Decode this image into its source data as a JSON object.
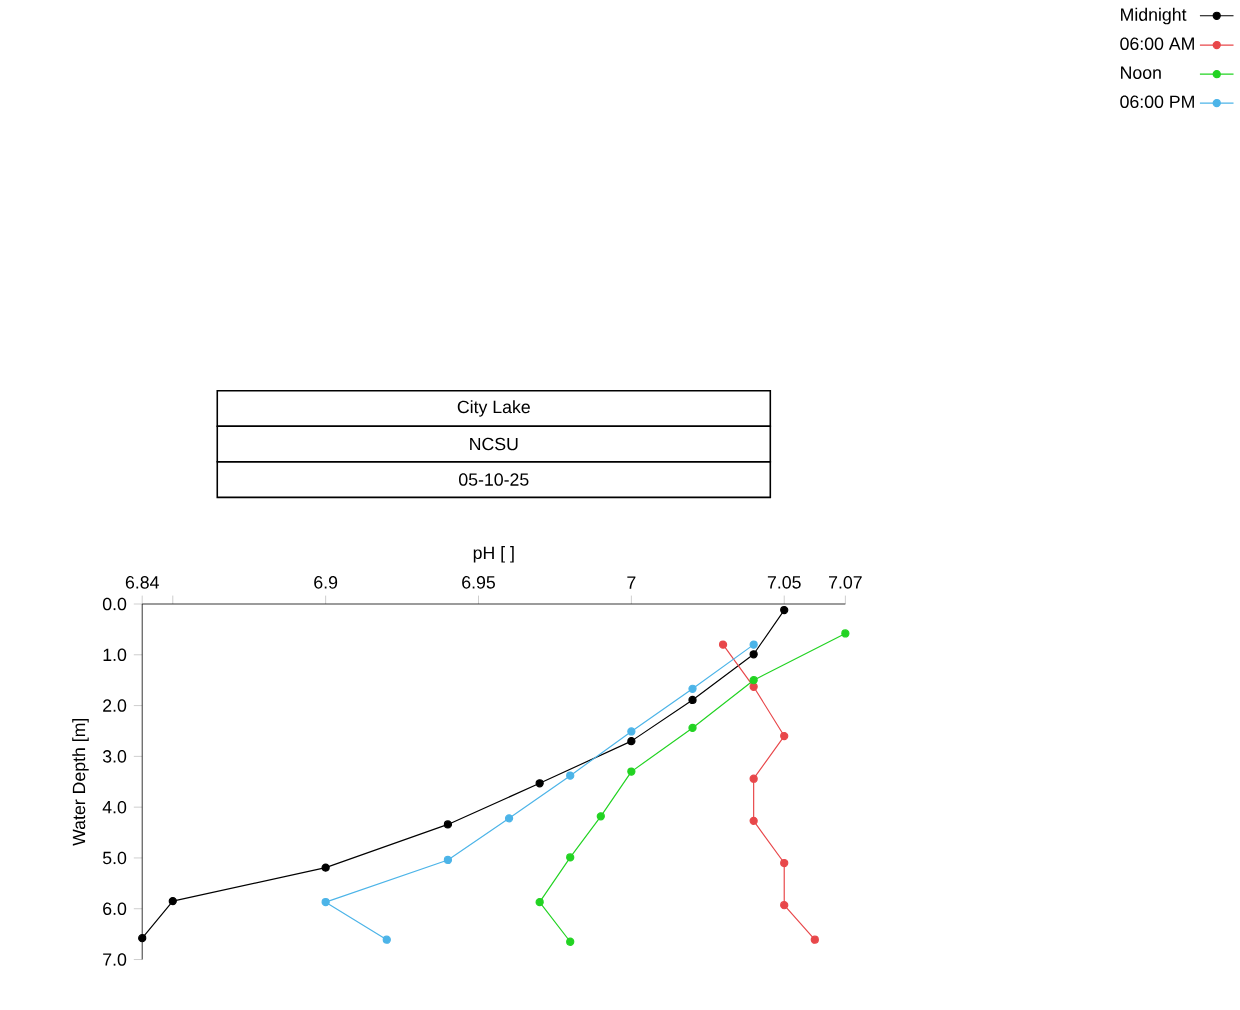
{
  "chart_data": {
    "type": "line",
    "title": "City Lake",
    "subtitle": "NCSU",
    "annotations": [
      "05-10-25"
    ],
    "xlabel": "pH [ ]",
    "ylabel": "Water Depth [m]",
    "xlim": [
      6.84,
      7.07
    ],
    "xticks": [
      6.84,
      {
        "value": 6.85,
        "label": null
      },
      6.9,
      6.95,
      7,
      7.05,
      7.07
    ],
    "ylim": [
      7.0,
      0.0
    ],
    "yticks": [
      {
        "value": 0,
        "label": "0.0"
      },
      {
        "value": 1,
        "label": "1.0"
      },
      {
        "value": 2,
        "label": "2.0"
      },
      {
        "value": 3,
        "label": "3.0"
      },
      {
        "value": 4,
        "label": "4.0"
      },
      {
        "value": 5,
        "label": "5.0"
      },
      {
        "value": 6,
        "label": "6.0"
      },
      {
        "value": 7,
        "label": "7.0"
      }
    ],
    "marker": "circle",
    "line_style": "solid",
    "grid": false,
    "legend": "top right",
    "series": [
      {
        "name": "Midnight",
        "color": "#000000",
        "x": [
          7.05,
          7.04,
          7.02,
          7.0,
          6.97,
          6.94,
          6.9,
          6.85,
          6.84
        ],
        "values": [
          0.12,
          0.99,
          1.89,
          2.7,
          3.53,
          4.34,
          5.19,
          5.85,
          6.58
        ]
      },
      {
        "name": "06:00 AM",
        "color": "#e8474a",
        "x": [
          7.03,
          7.04,
          7.05,
          7.04,
          7.04,
          7.05,
          7.05,
          7.06
        ],
        "values": [
          0.8,
          1.63,
          2.6,
          3.44,
          4.27,
          5.1,
          5.93,
          6.61
        ]
      },
      {
        "name": "Noon",
        "color": "#22d322",
        "x": [
          7.07,
          7.04,
          7.02,
          7.0,
          6.99,
          6.98,
          6.97,
          6.98
        ],
        "values": [
          0.58,
          1.5,
          2.44,
          3.3,
          4.18,
          4.99,
          5.87,
          6.65
        ]
      },
      {
        "name": "06:00 PM",
        "color": "#4cb4e8",
        "x": [
          7.04,
          7.02,
          7.0,
          6.98,
          6.96,
          6.94,
          6.9,
          6.92
        ],
        "values": [
          0.8,
          1.67,
          2.51,
          3.38,
          4.22,
          5.04,
          5.87,
          6.61
        ]
      }
    ]
  }
}
